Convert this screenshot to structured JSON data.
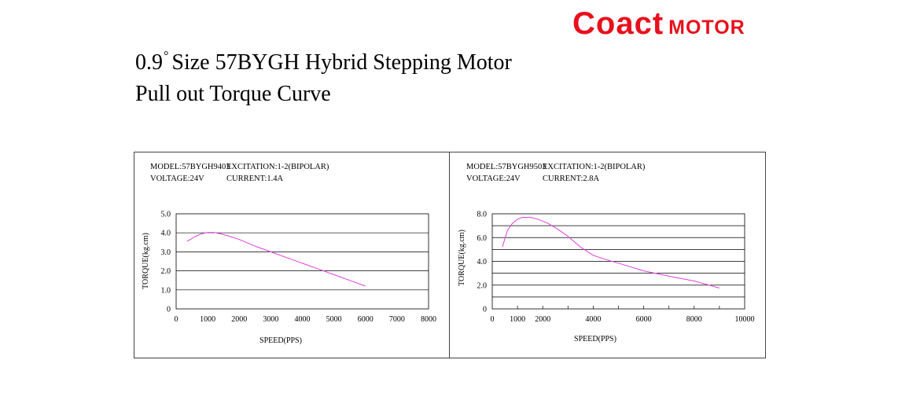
{
  "brand": {
    "name": "Coact",
    "suffix": "MOTOR",
    "color": "#e8101c"
  },
  "title": {
    "line1_prefix": "0.9",
    "degree_mark": "°",
    "line1_rest": "Size 57BYGH  Hybrid Stepping Motor",
    "line2": "Pull out Torque Curve"
  },
  "chart_data": [
    {
      "type": "line",
      "model": "MODEL:57BYGH9403",
      "excitation": "EXCITATION:1-2(BIPOLAR)",
      "voltage": "VOLTAGE:24V",
      "current": "CURRENT:1.4A",
      "xlabel": "SPEED(PPS)",
      "ylabel": "TORQUE(kg.cm)",
      "xlim": [
        0,
        8000
      ],
      "ylim": [
        0,
        5
      ],
      "xticks": [
        "0",
        "1000",
        "2000",
        "3000",
        "4000",
        "5000",
        "6000",
        "7000",
        "8000"
      ],
      "xtick_values": [
        0,
        1000,
        2000,
        3000,
        4000,
        5000,
        6000,
        7000,
        8000
      ],
      "yticks": [
        "5.0",
        "4.0",
        "3.0",
        "2.0",
        "1.0",
        "0"
      ],
      "ytick_values": [
        5,
        4,
        3,
        2,
        1,
        0
      ],
      "hgrid": [
        1,
        2,
        3,
        4
      ],
      "line_color": "#e040e0",
      "x": [
        350,
        600,
        800,
        1000,
        1200,
        1400,
        1700,
        2000,
        2500,
        3000,
        3500,
        4000,
        4500,
        5000,
        5500,
        6000
      ],
      "y": [
        3.55,
        3.8,
        3.95,
        4.02,
        4.02,
        3.95,
        3.82,
        3.65,
        3.3,
        3.0,
        2.7,
        2.4,
        2.1,
        1.8,
        1.5,
        1.2
      ]
    },
    {
      "type": "line",
      "model": "MODEL:57BYGH9503",
      "excitation": "EXCITATION:1-2(BIPOLAR)",
      "voltage": "VOLTAGE:24V",
      "current": "CURRENT:2.8A",
      "xlabel": "SPEED(PPS)",
      "ylabel": "TORQUE(kg.cm)",
      "xlim": [
        0,
        10000
      ],
      "ylim": [
        0,
        8
      ],
      "xticks": [
        "0",
        "1000",
        "2000",
        "4000",
        "6000",
        "8000",
        "10000"
      ],
      "xtick_values": [
        0,
        1000,
        2000,
        4000,
        6000,
        8000,
        10000
      ],
      "yticks": [
        "8.0",
        "6.0",
        "4.0",
        "2.0",
        "0"
      ],
      "ytick_values": [
        8,
        6,
        4,
        2,
        0
      ],
      "hgrid": [
        1,
        2,
        3,
        4,
        5,
        6,
        7
      ],
      "vgrid": [
        1000,
        2000,
        3000,
        4000,
        5000,
        6000,
        7000,
        8000,
        9000
      ],
      "line_color": "#e040e0",
      "x": [
        400,
        600,
        800,
        1000,
        1200,
        1500,
        1800,
        2200,
        2600,
        3000,
        3500,
        4000,
        4500,
        5000,
        6000,
        7000,
        8000,
        9000
      ],
      "y": [
        5.2,
        6.6,
        7.2,
        7.55,
        7.7,
        7.7,
        7.55,
        7.2,
        6.7,
        6.1,
        5.2,
        4.5,
        4.15,
        3.85,
        3.2,
        2.75,
        2.35,
        1.75
      ]
    }
  ]
}
